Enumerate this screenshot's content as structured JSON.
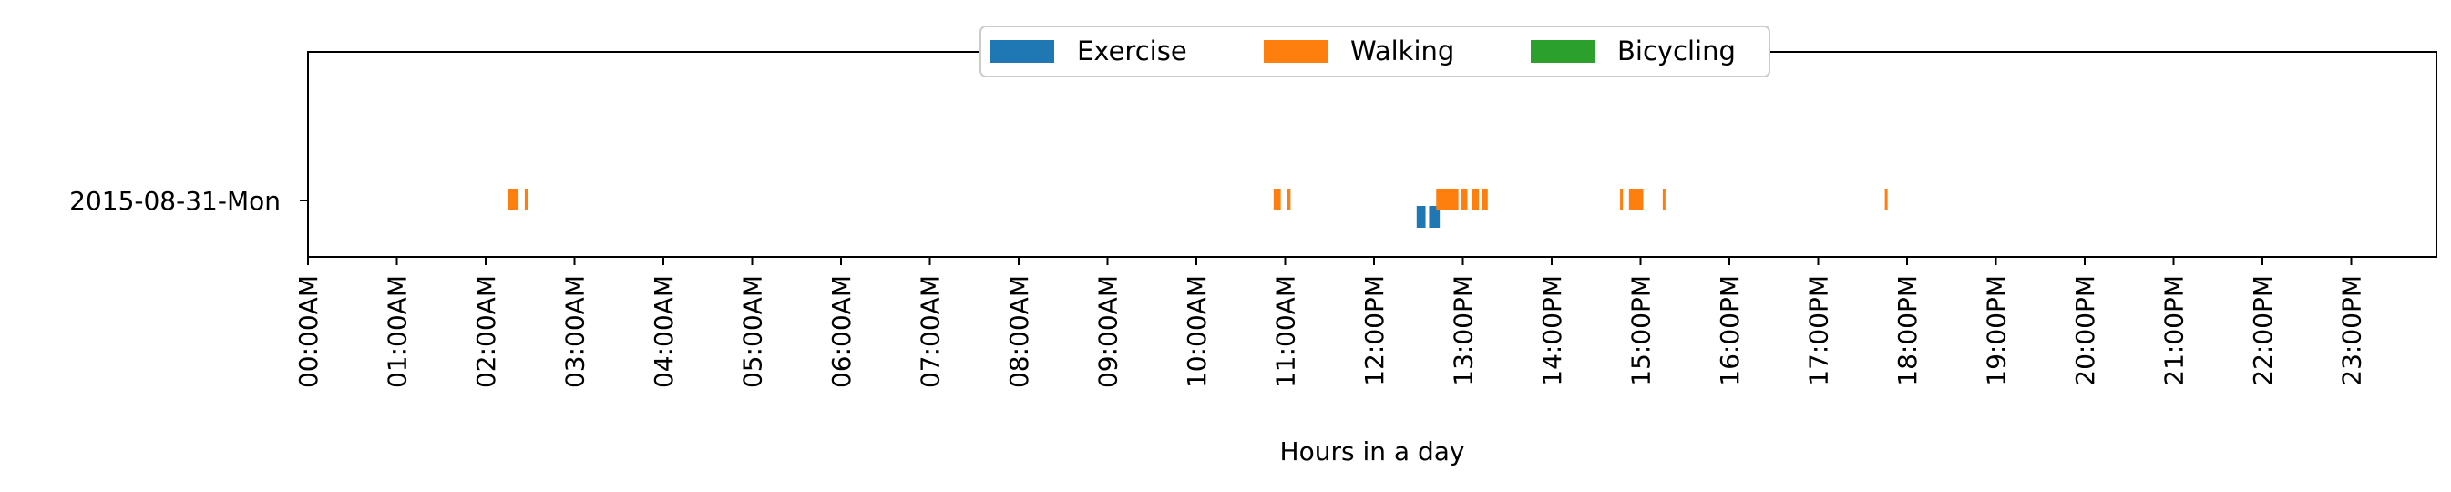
{
  "chart_data": {
    "type": "timeline",
    "title": "",
    "xlabel": "Hours in a day",
    "ylabel": "",
    "xlim_hours": [
      0,
      24
    ],
    "grid": false,
    "legend_position": "top-center",
    "y_categories": [
      "2015-08-31-Mon"
    ],
    "x_tick_labels": [
      "00:00AM",
      "01:00AM",
      "02:00AM",
      "03:00AM",
      "04:00AM",
      "05:00AM",
      "06:00AM",
      "07:00AM",
      "08:00AM",
      "09:00AM",
      "10:00AM",
      "11:00AM",
      "12:00PM",
      "13:00PM",
      "14:00PM",
      "15:00PM",
      "16:00PM",
      "17:00PM",
      "18:00PM",
      "19:00PM",
      "20:00PM",
      "21:00PM",
      "22:00PM",
      "23:00PM"
    ],
    "series": [
      {
        "name": "Exercise",
        "color": "#1f77b4",
        "intervals": [
          [
            12.48,
            12.58
          ],
          [
            12.62,
            12.74
          ]
        ]
      },
      {
        "name": "Walking",
        "color": "#ff7f0e",
        "intervals": [
          [
            2.25,
            2.37
          ],
          [
            2.44,
            2.48
          ],
          [
            10.87,
            10.95
          ],
          [
            11.02,
            11.06
          ],
          [
            12.7,
            12.95
          ],
          [
            12.98,
            13.05
          ],
          [
            13.1,
            13.18
          ],
          [
            13.21,
            13.28
          ],
          [
            14.77,
            14.8
          ],
          [
            14.87,
            15.03
          ],
          [
            15.25,
            15.28
          ],
          [
            17.75,
            17.78
          ]
        ]
      },
      {
        "name": "Bicycling",
        "color": "#2ca02c",
        "intervals": []
      }
    ]
  }
}
